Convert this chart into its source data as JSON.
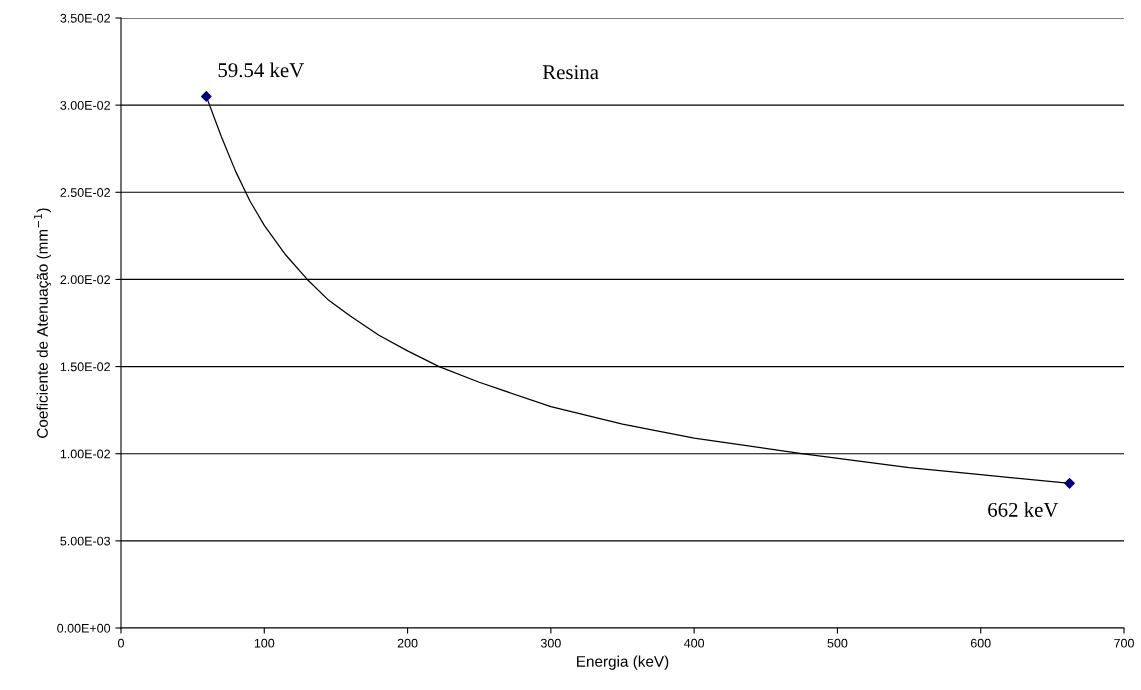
{
  "chart_data": {
    "type": "scatter",
    "xlabel": "Energia (keV)",
    "ylabel": "Coeficiente de Atenuação (mm$^{−1}$)",
    "series": [
      {
        "color": "#000080",
        "marker": "diamond",
        "x": [
          59.54,
          662
        ],
        "values": [
          0.0305,
          0.0083
        ]
      },
      {
        "type": "line",
        "color": "#000000",
        "marker": "none",
        "line_style": "solid",
        "x": [
          59.54,
          70,
          80,
          90,
          100,
          115,
          130,
          145,
          160,
          180,
          200,
          222,
          250,
          300,
          350,
          400,
          475,
          550,
          600,
          662
        ],
        "values": [
          0.0305,
          0.0282,
          0.0262,
          0.0245,
          0.0231,
          0.0214,
          0.02,
          0.0188,
          0.0179,
          0.0168,
          0.0159,
          0.015,
          0.0141,
          0.0127,
          0.0117,
          0.0109,
          0.01,
          0.0092,
          0.0088,
          0.0083
        ]
      }
    ],
    "annotations": [
      {
        "text": "59.54 keV",
        "x": 59.54,
        "y": 0.0305
      },
      {
        "text": "662 keV",
        "x": 662,
        "y": 0.0083
      },
      "Resina"
    ],
    "xlim": [
      0,
      700
    ],
    "xticks": [
      0,
      100,
      200,
      300,
      400,
      500,
      600,
      700
    ],
    "ylim": [
      0,
      0.035
    ],
    "yticks": [
      {
        "value": 0,
        "label": "0.00E+00"
      },
      {
        "value": 0.005,
        "label": "5.00E-03"
      },
      {
        "value": 0.01,
        "label": "1.00E-02"
      },
      {
        "value": 0.015,
        "label": "1.50E-02"
      },
      {
        "value": 0.02,
        "label": "2.00E-02"
      },
      {
        "value": 0.025,
        "label": "2.50E-02"
      },
      {
        "value": 0.03,
        "label": "3.00E-02"
      },
      {
        "value": 0.035,
        "label": "3.50E-02"
      }
    ],
    "grid": "y",
    "legend": false
  }
}
